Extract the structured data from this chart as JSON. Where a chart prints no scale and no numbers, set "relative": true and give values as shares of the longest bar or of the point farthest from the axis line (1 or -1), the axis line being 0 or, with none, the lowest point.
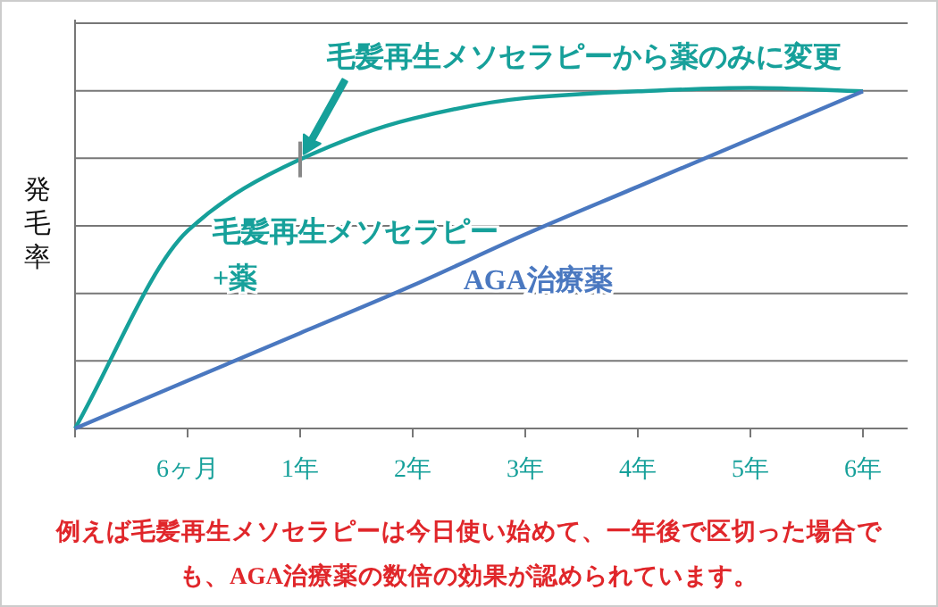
{
  "chart_data": {
    "type": "line",
    "relative": true,
    "ylabel": "発毛率",
    "categories": [
      null,
      "6ヶ月",
      "1年",
      "2年",
      "3年",
      "4年",
      "5年",
      "6年"
    ],
    "series": [
      {
        "name": "毛髪再生メソセラピー+薬",
        "color": "#16a09a",
        "values": [
          0,
          0.58,
          0.79,
          0.91,
          0.97,
          0.99,
          1,
          0.99
        ]
      },
      {
        "name": "AGA治療薬",
        "color": "#4a78c0",
        "values": [
          0,
          0.14,
          0.28,
          0.42,
          0.57,
          0.71,
          0.85,
          0.99
        ]
      }
    ],
    "annotations": [
      "毛髪再生メソセラピーから薬のみに変更",
      "例えば毛髪再生メソセラピーは今日使い始めて、一年後で区切った場合でも、AGA治療薬の数倍の効果が認められています。"
    ],
    "grid": "y",
    "marker": "none",
    "line_style": "solid",
    "legend": false
  }
}
